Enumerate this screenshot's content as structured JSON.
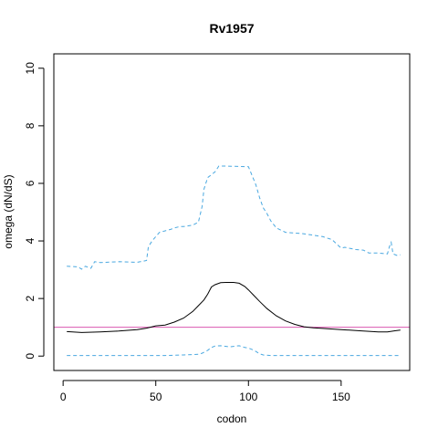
{
  "chart_data": {
    "type": "line",
    "title": "Rv1957",
    "xlabel": "codon",
    "ylabel": "omega (dN/dS)",
    "xlim": [
      -5,
      187
    ],
    "ylim": [
      -0.5,
      10.5
    ],
    "xticks": [
      0,
      50,
      100,
      150
    ],
    "yticks": [
      0,
      2,
      4,
      6,
      8,
      10
    ],
    "reference_line": {
      "y": 1.0,
      "color": "#d957b0"
    },
    "series": [
      {
        "style": "solid",
        "color": "#000000",
        "x": [
          2,
          10,
          20,
          30,
          40,
          45,
          50,
          55,
          60,
          65,
          70,
          73,
          76,
          78,
          80,
          82,
          85,
          88,
          92,
          95,
          98,
          100,
          103,
          106,
          110,
          115,
          120,
          125,
          130,
          135,
          140,
          150,
          160,
          170,
          175,
          179,
          182
        ],
        "y": [
          0.85,
          0.82,
          0.84,
          0.87,
          0.92,
          0.97,
          1.05,
          1.08,
          1.18,
          1.32,
          1.55,
          1.75,
          1.95,
          2.15,
          2.4,
          2.48,
          2.55,
          2.56,
          2.56,
          2.53,
          2.42,
          2.3,
          2.1,
          1.9,
          1.65,
          1.4,
          1.22,
          1.1,
          1.02,
          0.98,
          0.96,
          0.92,
          0.88,
          0.84,
          0.84,
          0.88,
          0.9
        ]
      },
      {
        "style": "dashed",
        "color": "#4aa8e0",
        "x": [
          2,
          8,
          10,
          12,
          15,
          17,
          20,
          30,
          40,
          45,
          46,
          48,
          50,
          52,
          55,
          58,
          60,
          63,
          65,
          70,
          73,
          75,
          76,
          78,
          80,
          82,
          84,
          85,
          87,
          100,
          104,
          106,
          108,
          110,
          112,
          115,
          120,
          130,
          140,
          145,
          150,
          152,
          158,
          162,
          165,
          170,
          175,
          176,
          177,
          178,
          180,
          182
        ],
        "y": [
          3.12,
          3.1,
          3.02,
          3.12,
          3.05,
          3.28,
          3.25,
          3.28,
          3.26,
          3.32,
          3.8,
          4.0,
          4.15,
          4.3,
          4.35,
          4.4,
          4.45,
          4.5,
          4.5,
          4.55,
          4.65,
          5.2,
          5.8,
          6.2,
          6.3,
          6.4,
          6.6,
          6.6,
          6.6,
          6.58,
          5.95,
          5.5,
          5.15,
          4.95,
          4.7,
          4.45,
          4.3,
          4.25,
          4.15,
          4.05,
          3.75,
          3.78,
          3.7,
          3.68,
          3.58,
          3.58,
          3.55,
          3.8,
          3.95,
          3.55,
          3.5,
          3.52
        ]
      },
      {
        "style": "dashed",
        "color": "#4aa8e0",
        "x": [
          2,
          20,
          40,
          50,
          55,
          60,
          65,
          70,
          73,
          75,
          78,
          80,
          82,
          85,
          90,
          95,
          98,
          100,
          103,
          106,
          108,
          112,
          120,
          140,
          160,
          182
        ],
        "y": [
          0.02,
          0.02,
          0.02,
          0.02,
          0.02,
          0.03,
          0.04,
          0.05,
          0.06,
          0.1,
          0.2,
          0.3,
          0.35,
          0.36,
          0.32,
          0.36,
          0.3,
          0.28,
          0.2,
          0.08,
          0.04,
          0.02,
          0.02,
          0.02,
          0.02,
          0.02
        ]
      }
    ]
  }
}
